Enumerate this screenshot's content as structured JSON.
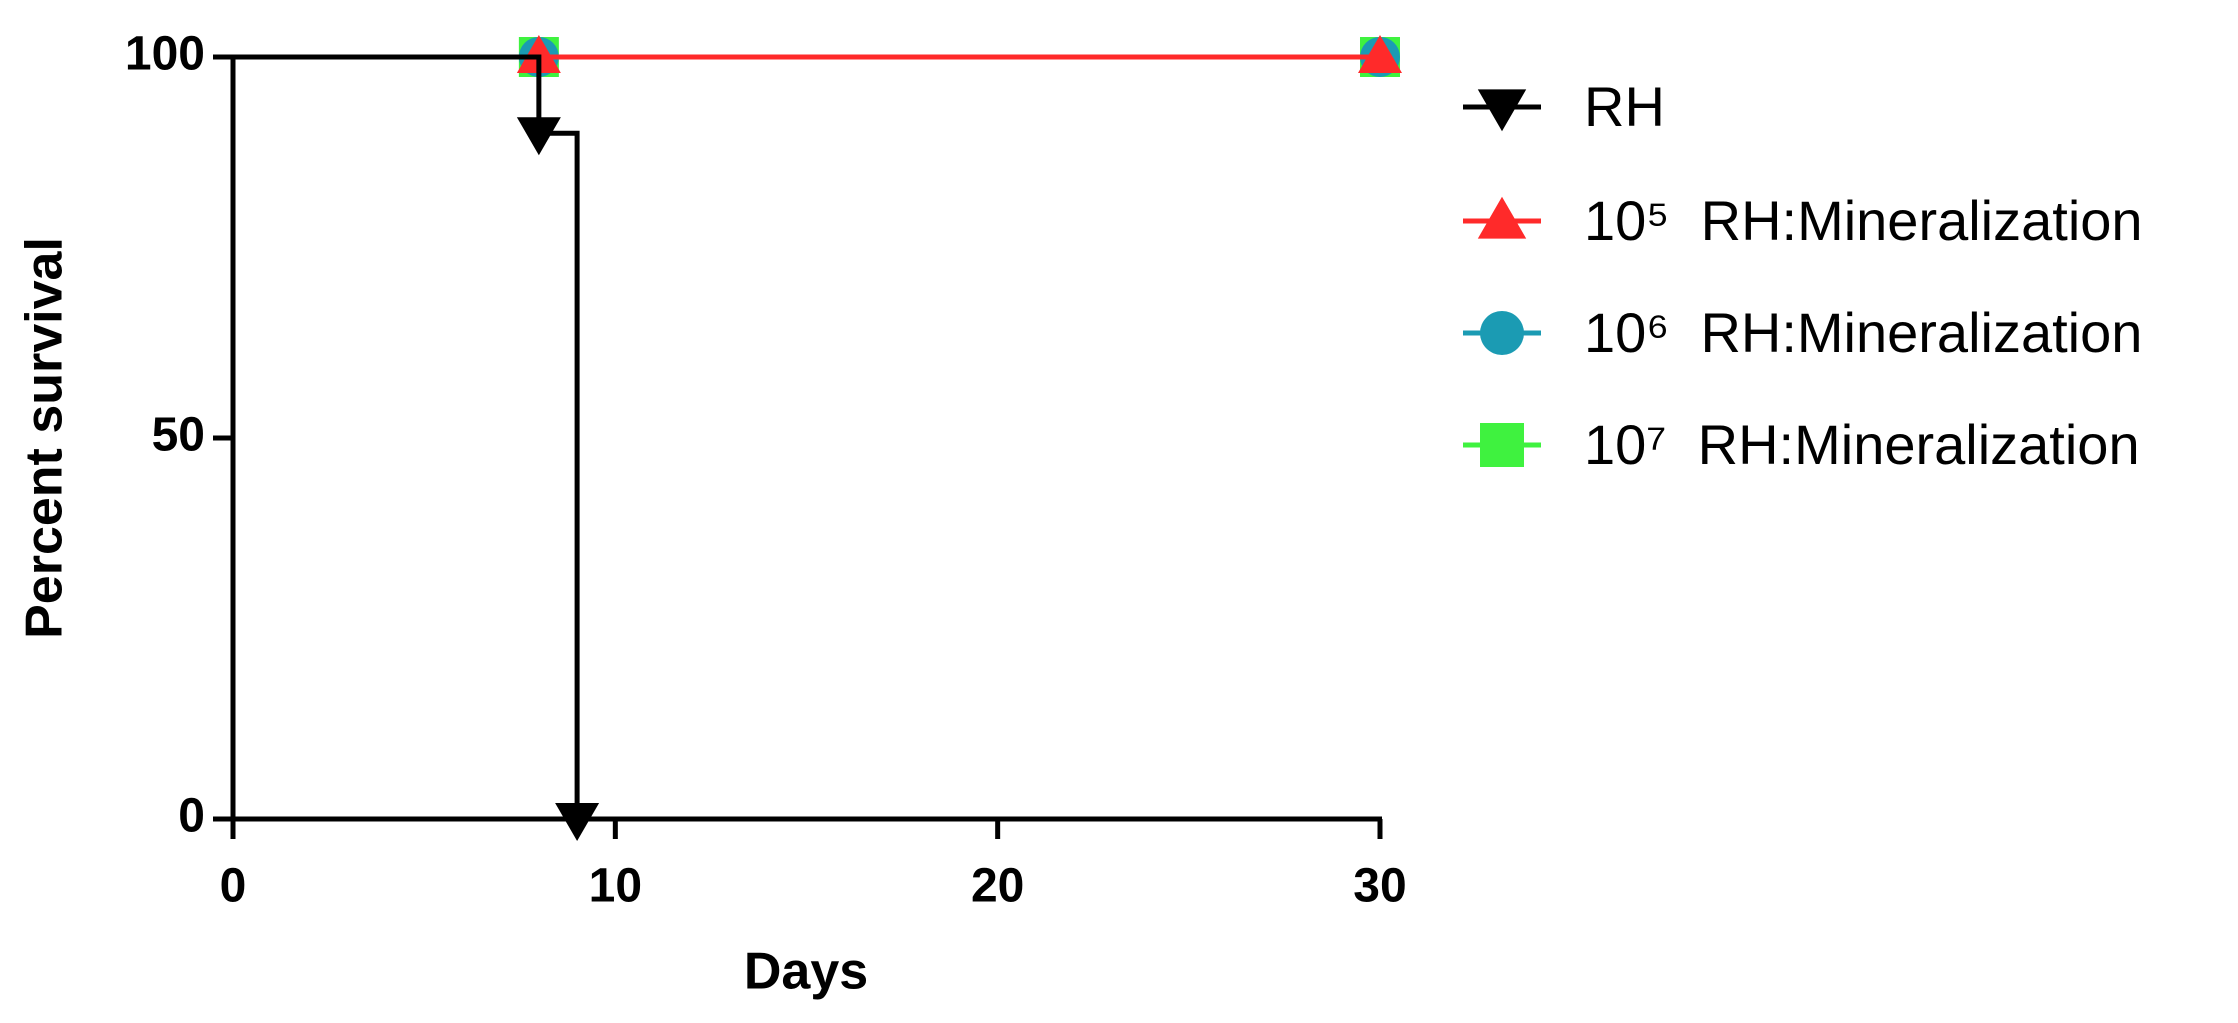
{
  "chart_data": {
    "type": "survival",
    "x_label": "Days",
    "y_label": "Percent survival",
    "xlim": [
      0,
      30
    ],
    "ylim": [
      0,
      100
    ],
    "xticks": [
      0,
      10,
      20,
      30
    ],
    "yticks": [
      0,
      50,
      100
    ],
    "legend": "right",
    "series": [
      {
        "name": "RH",
        "color": "#000000",
        "marker": "triangle-down",
        "x": [
          0,
          8,
          9
        ],
        "values": [
          100,
          90,
          0
        ]
      },
      {
        "name": "10⁵  RH:Mineralization",
        "color": "#ff2a2a",
        "marker": "triangle-up",
        "x": [
          8,
          30
        ],
        "values": [
          100,
          100
        ]
      },
      {
        "name": "10⁶  RH:Mineralization",
        "color": "#1b9bb3",
        "marker": "circle",
        "x": [
          8,
          30
        ],
        "values": [
          100,
          100
        ]
      },
      {
        "name": "10⁷  RH:Mineralization",
        "color": "#3ff23f",
        "marker": "square",
        "x": [
          8,
          30
        ],
        "values": [
          100,
          100
        ]
      }
    ]
  }
}
